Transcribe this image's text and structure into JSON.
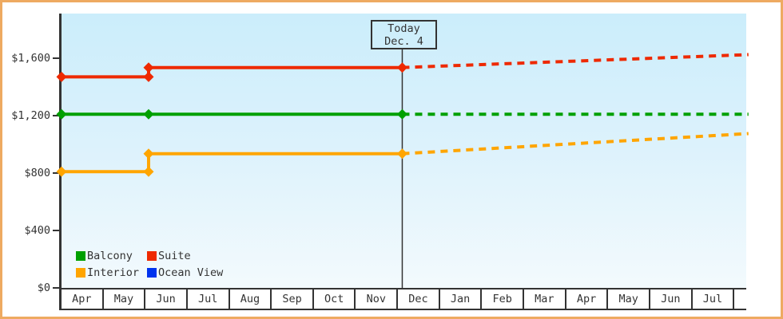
{
  "today_box": {
    "line1": "Today",
    "line2": "Dec. 4"
  },
  "legend": {
    "items": [
      {
        "label": "Balcony",
        "color": "#00a000"
      },
      {
        "label": "Suite",
        "color": "#ee2900"
      },
      {
        "label": "Interior",
        "color": "#ffa500"
      },
      {
        "label": "Ocean View",
        "color": "#0033ee"
      }
    ]
  },
  "colors": {
    "frame_border": "#eeaa61",
    "axis": "#333333",
    "plot_bg_top": "#cbedfb",
    "plot_bg_bottom": "#f3fafd",
    "today_line": "#333333"
  },
  "chart_data": {
    "type": "step-line",
    "title": "",
    "description": "Cabin price history by category (solid) with forecast after today (dashed)",
    "x_axis": {
      "unit": "month",
      "tick_labels": [
        "Apr",
        "May",
        "Jun",
        "Jul",
        "Aug",
        "Sep",
        "Oct",
        "Nov",
        "Dec",
        "Jan",
        "Feb",
        "Mar",
        "Apr",
        "May",
        "Jun",
        "Jul"
      ]
    },
    "y_axis": {
      "tick_labels": [
        "$0",
        "$400",
        "$800",
        "$1,200",
        "$1,600"
      ],
      "tick_values": [
        0,
        400,
        800,
        1200,
        1600
      ],
      "range": [
        0,
        1911
      ],
      "unit": "USD"
    },
    "today": {
      "t": 8.1,
      "label": "Today",
      "date": "Dec. 4"
    },
    "legend_position": "bottom-left-inside",
    "grid": false,
    "series": [
      {
        "name": "Balcony",
        "color": "#00a000",
        "solid": [
          {
            "t": 0,
            "value": 1210
          },
          {
            "t": 2.07,
            "value": 1210
          },
          {
            "t": 8.1,
            "value": 1210
          }
        ],
        "dashed": [
          {
            "t": 8.1,
            "value": 1210
          },
          {
            "t": 16.33,
            "value": 1210
          }
        ]
      },
      {
        "name": "Suite",
        "color": "#ee2900",
        "solid": [
          {
            "t": 0,
            "value": 1470
          },
          {
            "t": 2.07,
            "value": 1470
          },
          {
            "t": 2.07,
            "value": 1535
          },
          {
            "t": 8.1,
            "value": 1535
          }
        ],
        "dashed": [
          {
            "t": 8.1,
            "value": 1535
          },
          {
            "t": 16.33,
            "value": 1625
          }
        ]
      },
      {
        "name": "Interior",
        "color": "#ffa500",
        "solid": [
          {
            "t": 0,
            "value": 810
          },
          {
            "t": 2.07,
            "value": 810
          },
          {
            "t": 2.07,
            "value": 935
          },
          {
            "t": 8.1,
            "value": 935
          }
        ],
        "dashed": [
          {
            "t": 8.1,
            "value": 935
          },
          {
            "t": 16.33,
            "value": 1075
          }
        ]
      },
      {
        "name": "Ocean View",
        "color": "#0033ee",
        "solid": [],
        "dashed": []
      }
    ]
  }
}
